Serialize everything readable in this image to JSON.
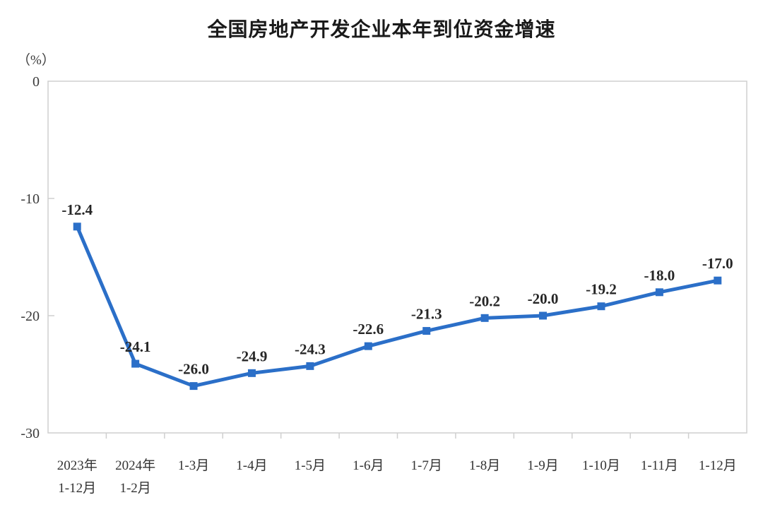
{
  "title": "全国房地产开发企业本年到位资金增速",
  "y_axis_unit": "（%）",
  "chart_data": {
    "type": "line",
    "title": "全国房地产开发企业本年到位资金增速",
    "ylabel": "（%）",
    "categories": [
      [
        "2023年",
        "1-12月"
      ],
      [
        "2024年",
        "1-2月"
      ],
      [
        "1-3月"
      ],
      [
        "1-4月"
      ],
      [
        "1-5月"
      ],
      [
        "1-6月"
      ],
      [
        "1-7月"
      ],
      [
        "1-8月"
      ],
      [
        "1-9月"
      ],
      [
        "1-10月"
      ],
      [
        "1-11月"
      ],
      [
        "1-12月"
      ]
    ],
    "values": [
      -12.4,
      -24.1,
      -26.0,
      -24.9,
      -24.3,
      -22.6,
      -21.3,
      -20.2,
      -20.0,
      -19.2,
      -18.0,
      -17.0
    ],
    "point_labels": [
      "-12.4",
      "-24.1",
      "-26.0",
      "-24.9",
      "-24.3",
      "-22.6",
      "-21.3",
      "-20.2",
      "-20.0",
      "-19.2",
      "-18.0",
      "-17.0"
    ],
    "ylim": [
      -30,
      0
    ],
    "yticks": [
      0,
      -10,
      -20,
      -30
    ],
    "ytick_labels": [
      "0",
      "-10",
      "-20",
      "-30"
    ],
    "grid": false,
    "legend": "none",
    "marker": "square",
    "line_color": "#2B6FC8",
    "marker_color": "#2B6FC8",
    "axis_color": "#CFCFCF",
    "label_color": "#262626",
    "tick_text_color": "#3a3a3a"
  }
}
